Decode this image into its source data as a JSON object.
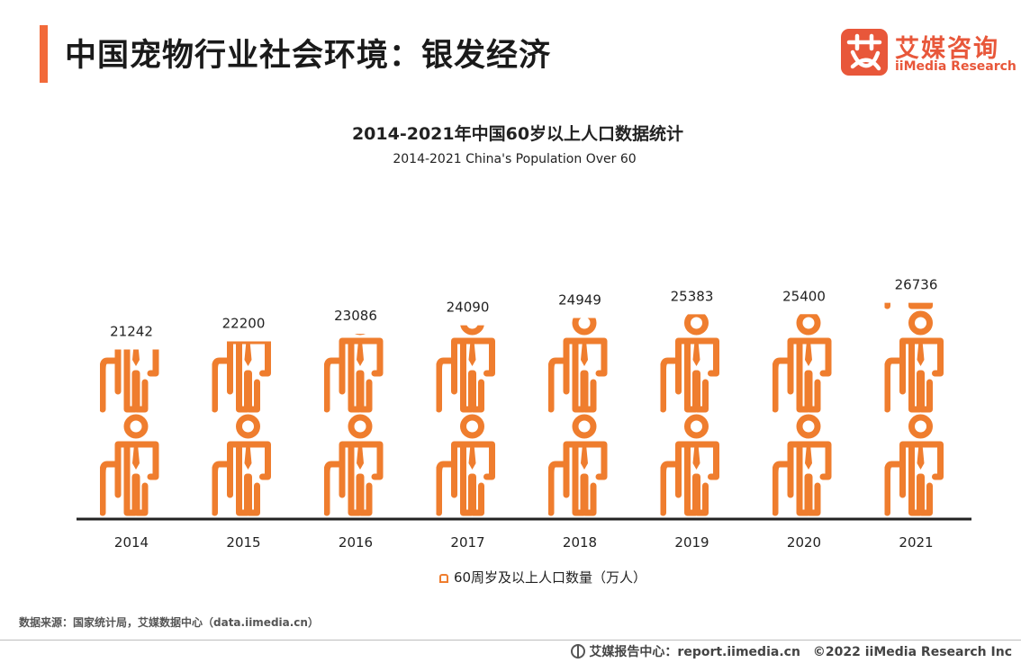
{
  "header": {
    "title": "中国宠物行业社会环境：银发经济",
    "accent_color": "#f26a3a"
  },
  "logo": {
    "cn": "艾媒咨询",
    "en": "iiMedia Research",
    "color": "#e8573a"
  },
  "chart_data": {
    "type": "bar",
    "title": "2014-2021年中国60岁以上人口数据统计",
    "subtitle": "2014-2021 China's Population Over 60",
    "categories": [
      "2014",
      "2015",
      "2016",
      "2017",
      "2018",
      "2019",
      "2020",
      "2021"
    ],
    "series": [
      {
        "name": "60周岁及以上人口数量（万人）",
        "values": [
          21242,
          22200,
          23086,
          24090,
          24949,
          25383,
          25400,
          26736
        ]
      }
    ],
    "color": "#ef7d2e",
    "legend_position": "bottom",
    "grid": false,
    "pictograph_icon": "elderly-person-with-cane-icon"
  },
  "source": "数据来源：国家统计局，艾媒数据中心（data.iimedia.cn）",
  "footer": {
    "icon": "globe-icon",
    "center": "艾媒报告中心：report.iimedia.cn",
    "copyright": "©2022  iiMedia Research  Inc"
  }
}
